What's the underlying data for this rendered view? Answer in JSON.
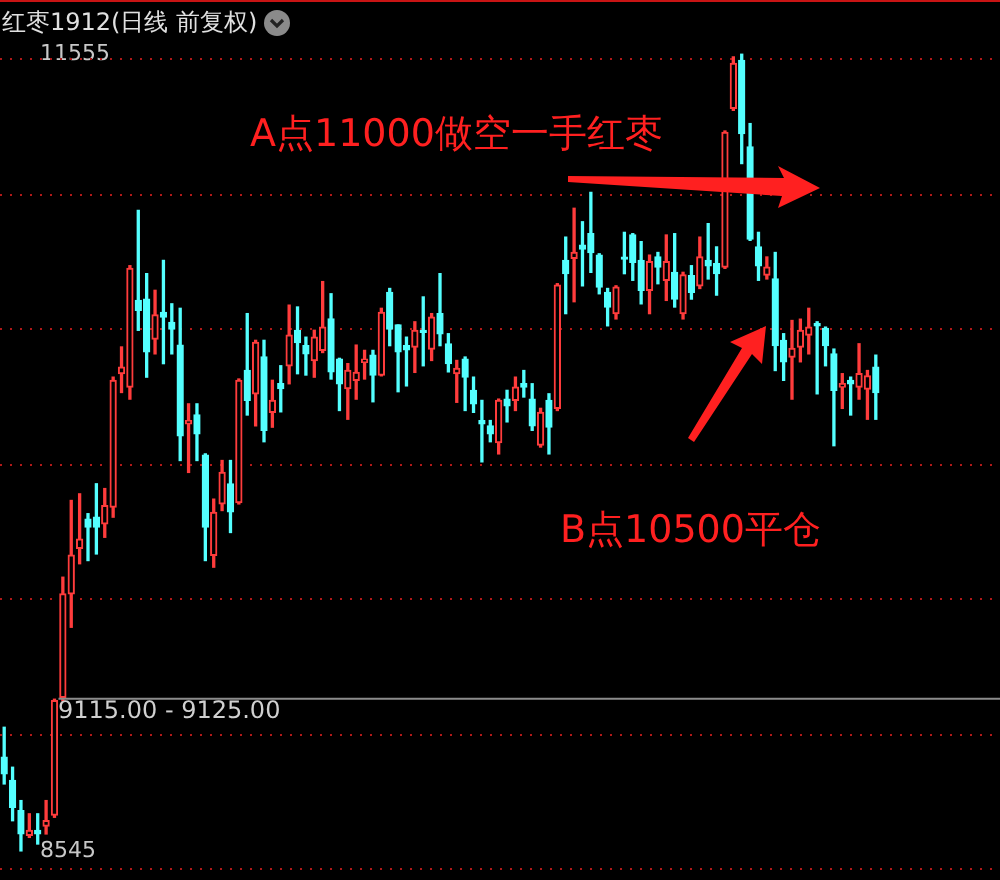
{
  "chart_data": {
    "type": "candlestick",
    "title": "红枣1912(日线 前复权)",
    "categories": [
      null,
      null,
      null,
      null,
      null,
      null,
      null,
      null,
      null,
      null,
      null,
      null,
      null,
      null,
      null,
      null,
      null,
      null,
      null,
      null,
      null,
      null,
      null,
      null,
      null,
      null,
      null,
      null,
      null,
      null,
      null,
      null,
      null,
      null,
      null,
      null,
      null,
      null,
      null,
      null,
      null,
      null,
      null,
      null,
      null,
      null,
      null,
      null,
      null,
      null,
      null,
      null,
      null,
      null,
      null,
      null,
      null,
      null,
      null,
      null,
      null,
      null,
      null,
      null,
      null,
      null,
      null,
      null,
      null,
      null,
      null,
      null,
      null,
      null,
      null,
      null,
      null,
      null,
      null,
      null,
      null,
      null,
      null,
      null,
      null,
      null,
      null,
      null,
      null,
      null,
      null,
      null,
      null,
      null,
      null,
      null,
      null,
      null,
      null,
      null,
      null,
      null,
      null,
      null,
      null
    ],
    "ohlc": [
      [
        8899,
        9012,
        8798,
        8836
      ],
      [
        8811,
        8861,
        8659,
        8710
      ],
      [
        8697,
        8735,
        8545,
        8609
      ],
      [
        8604,
        8685,
        8596,
        8622
      ],
      [
        8622,
        8685,
        8571,
        8609
      ],
      [
        8639,
        8735,
        8609,
        8659
      ],
      [
        8680,
        9118,
        8672,
        9113
      ],
      [
        9125,
        9579,
        9113,
        9516
      ],
      [
        9516,
        9869,
        9390,
        9662
      ],
      [
        9688,
        9894,
        9630,
        9723
      ],
      [
        9798,
        9819,
        9642,
        9768
      ],
      [
        9806,
        9932,
        9667,
        9768
      ],
      [
        9781,
        9914,
        9730,
        9849
      ],
      [
        9844,
        10335,
        9806,
        10323
      ],
      [
        10348,
        10449,
        10277,
        10373
      ],
      [
        10297,
        10756,
        10252,
        10746
      ],
      [
        10625,
        10965,
        10512,
        10587
      ],
      [
        10630,
        10726,
        10335,
        10431
      ],
      [
        10479,
        10663,
        10423,
        10570
      ],
      [
        10580,
        10776,
        10386,
        10562
      ],
      [
        10542,
        10612,
        10423,
        10517
      ],
      [
        10456,
        10595,
        10020,
        10113
      ],
      [
        10159,
        10234,
        9975,
        10171
      ],
      [
        10192,
        10234,
        10020,
        10121
      ],
      [
        10040,
        10045,
        9642,
        9768
      ],
      [
        9662,
        9874,
        9617,
        9824
      ],
      [
        9856,
        10020,
        9831,
        9975
      ],
      [
        9932,
        10020,
        9748,
        9826
      ],
      [
        9861,
        10328,
        9856,
        10323
      ],
      [
        10360,
        10575,
        10192,
        10247
      ],
      [
        10272,
        10474,
        10151,
        10466
      ],
      [
        10411,
        10474,
        10091,
        10134
      ],
      [
        10202,
        10323,
        10146,
        10247
      ],
      [
        10310,
        10378,
        10204,
        10292
      ],
      [
        10378,
        10607,
        10310,
        10494
      ],
      [
        10512,
        10600,
        10348,
        10466
      ],
      [
        10454,
        10486,
        10343,
        10423
      ],
      [
        10398,
        10512,
        10335,
        10486
      ],
      [
        10436,
        10696,
        10428,
        10524
      ],
      [
        10555,
        10650,
        10328,
        10355
      ],
      [
        10403,
        10406,
        10209,
        10310
      ],
      [
        10292,
        10386,
        10176,
        10360
      ],
      [
        10323,
        10456,
        10252,
        10353
      ],
      [
        10391,
        10436,
        10328,
        10403
      ],
      [
        10418,
        10436,
        10242,
        10343
      ],
      [
        10343,
        10595,
        10340,
        10580
      ],
      [
        10655,
        10670,
        10454,
        10517
      ],
      [
        10532,
        10532,
        10280,
        10431
      ],
      [
        10454,
        10486,
        10302,
        10438
      ],
      [
        10449,
        10544,
        10353,
        10512
      ],
      [
        10512,
        10638,
        10378,
        10504
      ],
      [
        10441,
        10575,
        10398,
        10562
      ],
      [
        10575,
        10726,
        10454,
        10499
      ],
      [
        10461,
        10499,
        10355,
        10386
      ],
      [
        10348,
        10398,
        10240,
        10368
      ],
      [
        10403,
        10411,
        10209,
        10335
      ],
      [
        10285,
        10335,
        10202,
        10234
      ],
      [
        10171,
        10247,
        10015,
        10159
      ],
      [
        10151,
        10171,
        10091,
        10121
      ],
      [
        10088,
        10252,
        10045,
        10247
      ],
      [
        10252,
        10285,
        10166,
        10227
      ],
      [
        10247,
        10335,
        10209,
        10297
      ],
      [
        10310,
        10360,
        10260,
        10297
      ],
      [
        10252,
        10310,
        10134,
        10151
      ],
      [
        10078,
        10217,
        10071,
        10202
      ],
      [
        10247,
        10272,
        10045,
        10146
      ],
      [
        10217,
        10688,
        10209,
        10683
      ],
      [
        10776,
        10864,
        10575,
        10726
      ],
      [
        10784,
        10973,
        10620,
        10806
      ],
      [
        10834,
        10922,
        10680,
        10819
      ],
      [
        10877,
        11033,
        10731,
        10806
      ],
      [
        10796,
        10801,
        10650,
        10675
      ],
      [
        10655,
        10670,
        10529,
        10600
      ],
      [
        10575,
        10680,
        10555,
        10675
      ],
      [
        10784,
        10882,
        10726,
        10781
      ],
      [
        10872,
        10877,
        10701,
        10769
      ],
      [
        10776,
        10847,
        10612,
        10663
      ],
      [
        10663,
        10796,
        10575,
        10771
      ],
      [
        10789,
        10806,
        10688,
        10751
      ],
      [
        10701,
        10872,
        10625,
        10771
      ],
      [
        10731,
        10877,
        10600,
        10630
      ],
      [
        10575,
        10731,
        10555,
        10721
      ],
      [
        10718,
        10756,
        10630,
        10655
      ],
      [
        10680,
        10864,
        10670,
        10789
      ],
      [
        10776,
        10915,
        10706,
        10756
      ],
      [
        10764,
        10827,
        10645,
        10726
      ],
      [
        10751,
        11265,
        10746,
        11260
      ],
      [
        11351,
        11545,
        11343,
        11520
      ],
      [
        11532,
        11555,
        11142,
        11255
      ],
      [
        11205,
        11293,
        10852,
        10857
      ],
      [
        10827,
        10882,
        10701,
        10756
      ],
      [
        10721,
        10789,
        10706,
        10751
      ],
      [
        10706,
        10806,
        10360,
        10454
      ],
      [
        10474,
        10499,
        10323,
        10393
      ],
      [
        10411,
        10549,
        10252,
        10444
      ],
      [
        10449,
        10554,
        10393,
        10512
      ],
      [
        10494,
        10595,
        10423,
        10524
      ],
      [
        10537,
        10544,
        10272,
        10529
      ],
      [
        10519,
        10524,
        10378,
        10454
      ],
      [
        10423,
        10441,
        10076,
        10285
      ],
      [
        10297,
        10348,
        10217,
        10310
      ],
      [
        10323,
        10335,
        10192,
        10310
      ],
      [
        10297,
        10461,
        10252,
        10348
      ],
      [
        10290,
        10360,
        10176,
        10340
      ],
      [
        10373,
        10418,
        10176,
        10277
      ]
    ],
    "colors": [
      "#54ffff",
      "#54ffff",
      "#54ffff",
      "#ff3c3c",
      "#54ffff",
      "#ff3c3c",
      "#ff3c3c",
      "#ff3c3c",
      "#ff3c3c",
      "#ff3c3c",
      "#54ffff",
      "#54ffff",
      "#ff3c3c",
      "#ff3c3c",
      "#ff3c3c",
      "#ff3c3c",
      "#54ffff",
      "#54ffff",
      "#ff3c3c",
      "#54ffff",
      "#54ffff",
      "#54ffff",
      "#ff3c3c",
      "#54ffff",
      "#54ffff",
      "#ff3c3c",
      "#ff3c3c",
      "#54ffff",
      "#ff3c3c",
      "#54ffff",
      "#ff3c3c",
      "#54ffff",
      "#ff3c3c",
      "#54ffff",
      "#ff3c3c",
      "#54ffff",
      "#54ffff",
      "#ff3c3c",
      "#ff3c3c",
      "#54ffff",
      "#54ffff",
      "#ff3c3c",
      "#ff3c3c",
      "#ff3c3c",
      "#54ffff",
      "#ff3c3c",
      "#54ffff",
      "#54ffff",
      "#54ffff",
      "#ff3c3c",
      "#54ffff",
      "#ff3c3c",
      "#54ffff",
      "#54ffff",
      "#ff3c3c",
      "#54ffff",
      "#54ffff",
      "#54ffff",
      "#54ffff",
      "#ff3c3c",
      "#54ffff",
      "#ff3c3c",
      "#54ffff",
      "#54ffff",
      "#ff3c3c",
      "#54ffff",
      "#ff3c3c",
      "#54ffff",
      "#ff3c3c",
      "#54ffff",
      "#54ffff",
      "#54ffff",
      "#54ffff",
      "#ff3c3c",
      "#54ffff",
      "#54ffff",
      "#54ffff",
      "#ff3c3c",
      "#54ffff",
      "#ff3c3c",
      "#54ffff",
      "#ff3c3c",
      "#54ffff",
      "#ff3c3c",
      "#54ffff",
      "#54ffff",
      "#ff3c3c",
      "#ff3c3c",
      "#54ffff",
      "#54ffff",
      "#54ffff",
      "#ff3c3c",
      "#54ffff",
      "#54ffff",
      "#ff3c3c",
      "#ff3c3c",
      "#ff3c3c",
      "#54ffff",
      "#54ffff",
      "#54ffff",
      "#ff3c3c",
      "#54ffff",
      "#ff3c3c",
      "#ff3c3c",
      "#54ffff"
    ],
    "ylim": [
      8435,
      11760
    ],
    "yticks": [
      {
        "value": 8545,
        "label": "8545"
      },
      {
        "value": 11555,
        "label": "11555"
      },
      {
        "value": 8480,
        "label": null
      },
      {
        "value": 8990,
        "label": null
      },
      {
        "value": 9500,
        "label": null
      },
      {
        "value": 10010,
        "label": null
      },
      {
        "value": 10520,
        "label": null
      },
      {
        "value": 11030,
        "label": null
      },
      {
        "value": 11540,
        "label": null
      }
    ],
    "tick_labels": "y",
    "grid": "y",
    "legend": false,
    "ref_lines": [
      {
        "axis": "y",
        "value": 9120,
        "color": "#8c8c8c"
      }
    ],
    "annotations": [
      "A点11000做空一手红枣",
      "B点10500平仓",
      "9115.00 - 9125.00"
    ]
  }
}
